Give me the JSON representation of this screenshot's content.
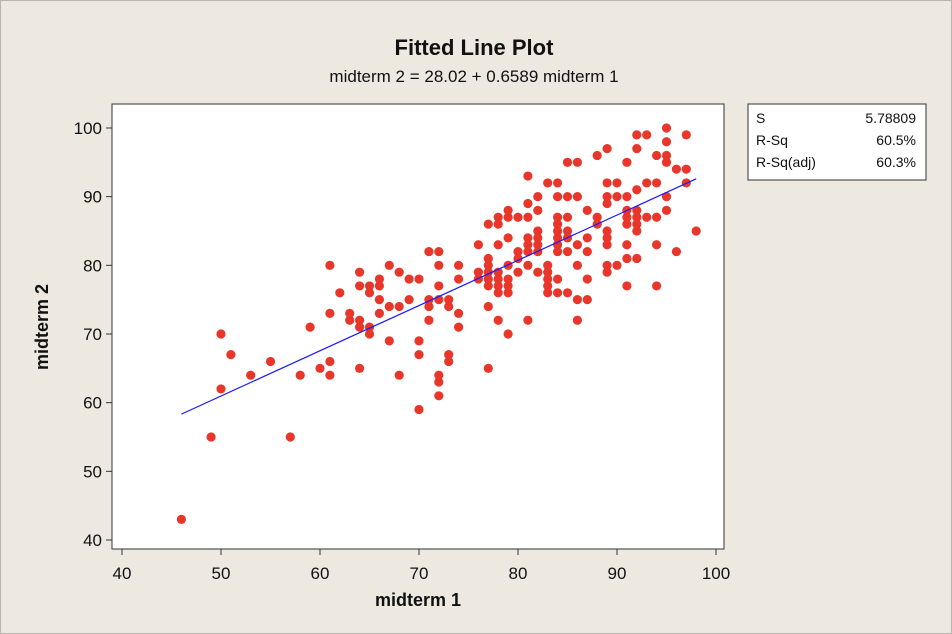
{
  "chart_data": {
    "type": "scatter",
    "title": "Fitted Line Plot",
    "subtitle": "midterm 2 =  28.02 + 0.6589 midterm 1",
    "xlabel": "midterm 1",
    "ylabel": "midterm 2",
    "xlim": [
      39,
      101
    ],
    "ylim": [
      39,
      101.5
    ],
    "xticks": [
      40,
      50,
      60,
      70,
      80,
      90,
      100
    ],
    "yticks": [
      40,
      50,
      60,
      70,
      80,
      90,
      100
    ],
    "fit": {
      "intercept": 28.02,
      "slope": 0.6589,
      "x_range": [
        46,
        98
      ],
      "color": "#1a1aff"
    },
    "point_color": "#e8372a",
    "stats": [
      {
        "label": "S",
        "value": "5.78809"
      },
      {
        "label": "R-Sq",
        "value": "60.5%"
      },
      {
        "label": "R-Sq(adj)",
        "value": "60.3%"
      }
    ],
    "points": [
      [
        46,
        43
      ],
      [
        49,
        55
      ],
      [
        50,
        70
      ],
      [
        50,
        62
      ],
      [
        51,
        67
      ],
      [
        53,
        64
      ],
      [
        55,
        66
      ],
      [
        57,
        55
      ],
      [
        58,
        64
      ],
      [
        59,
        71
      ],
      [
        60,
        65
      ],
      [
        61,
        80
      ],
      [
        61,
        73
      ],
      [
        61,
        66
      ],
      [
        61,
        64
      ],
      [
        62,
        76
      ],
      [
        63,
        73
      ],
      [
        63,
        72
      ],
      [
        64,
        79
      ],
      [
        64,
        77
      ],
      [
        64,
        72
      ],
      [
        64,
        71
      ],
      [
        64,
        65
      ],
      [
        65,
        77
      ],
      [
        65,
        76
      ],
      [
        65,
        71
      ],
      [
        65,
        70
      ],
      [
        66,
        78
      ],
      [
        66,
        77
      ],
      [
        66,
        75
      ],
      [
        66,
        73
      ],
      [
        67,
        80
      ],
      [
        67,
        74
      ],
      [
        67,
        69
      ],
      [
        68,
        79
      ],
      [
        68,
        74
      ],
      [
        68,
        64
      ],
      [
        69,
        78
      ],
      [
        69,
        75
      ],
      [
        70,
        78
      ],
      [
        70,
        69
      ],
      [
        70,
        67
      ],
      [
        70,
        59
      ],
      [
        71,
        82
      ],
      [
        71,
        75
      ],
      [
        71,
        74
      ],
      [
        71,
        72
      ],
      [
        72,
        82
      ],
      [
        72,
        80
      ],
      [
        72,
        77
      ],
      [
        72,
        75
      ],
      [
        72,
        64
      ],
      [
        72,
        63
      ],
      [
        72,
        61
      ],
      [
        73,
        75
      ],
      [
        73,
        74
      ],
      [
        73,
        67
      ],
      [
        73,
        66
      ],
      [
        74,
        80
      ],
      [
        74,
        78
      ],
      [
        74,
        73
      ],
      [
        74,
        71
      ],
      [
        76,
        83
      ],
      [
        76,
        79
      ],
      [
        76,
        78
      ],
      [
        77,
        86
      ],
      [
        77,
        81
      ],
      [
        77,
        80
      ],
      [
        77,
        79
      ],
      [
        77,
        78
      ],
      [
        77,
        77
      ],
      [
        77,
        74
      ],
      [
        77,
        65
      ],
      [
        78,
        87
      ],
      [
        78,
        86
      ],
      [
        78,
        83
      ],
      [
        78,
        79
      ],
      [
        78,
        78
      ],
      [
        78,
        77
      ],
      [
        78,
        76
      ],
      [
        78,
        72
      ],
      [
        79,
        88
      ],
      [
        79,
        87
      ],
      [
        79,
        84
      ],
      [
        79,
        80
      ],
      [
        79,
        78
      ],
      [
        79,
        77
      ],
      [
        79,
        76
      ],
      [
        79,
        70
      ],
      [
        80,
        87
      ],
      [
        80,
        82
      ],
      [
        80,
        81
      ],
      [
        80,
        79
      ],
      [
        81,
        93
      ],
      [
        81,
        89
      ],
      [
        81,
        87
      ],
      [
        81,
        84
      ],
      [
        81,
        83
      ],
      [
        81,
        82
      ],
      [
        81,
        80
      ],
      [
        81,
        72
      ],
      [
        82,
        90
      ],
      [
        82,
        88
      ],
      [
        82,
        85
      ],
      [
        82,
        84
      ],
      [
        82,
        83
      ],
      [
        82,
        82
      ],
      [
        82,
        79
      ],
      [
        83,
        92
      ],
      [
        83,
        80
      ],
      [
        83,
        79
      ],
      [
        83,
        78
      ],
      [
        83,
        77
      ],
      [
        83,
        76
      ],
      [
        84,
        92
      ],
      [
        84,
        90
      ],
      [
        84,
        87
      ],
      [
        84,
        86
      ],
      [
        84,
        85
      ],
      [
        84,
        84
      ],
      [
        84,
        83
      ],
      [
        84,
        82
      ],
      [
        84,
        78
      ],
      [
        84,
        76
      ],
      [
        85,
        95
      ],
      [
        85,
        90
      ],
      [
        85,
        87
      ],
      [
        85,
        85
      ],
      [
        85,
        84
      ],
      [
        85,
        82
      ],
      [
        85,
        76
      ],
      [
        86,
        95
      ],
      [
        86,
        90
      ],
      [
        86,
        83
      ],
      [
        86,
        80
      ],
      [
        86,
        75
      ],
      [
        86,
        72
      ],
      [
        87,
        88
      ],
      [
        87,
        84
      ],
      [
        87,
        82
      ],
      [
        87,
        78
      ],
      [
        87,
        75
      ],
      [
        88,
        96
      ],
      [
        88,
        87
      ],
      [
        88,
        86
      ],
      [
        89,
        97
      ],
      [
        89,
        92
      ],
      [
        89,
        90
      ],
      [
        89,
        89
      ],
      [
        89,
        85
      ],
      [
        89,
        84
      ],
      [
        89,
        83
      ],
      [
        89,
        80
      ],
      [
        89,
        79
      ],
      [
        90,
        92
      ],
      [
        90,
        90
      ],
      [
        90,
        80
      ],
      [
        91,
        95
      ],
      [
        91,
        90
      ],
      [
        91,
        88
      ],
      [
        91,
        87
      ],
      [
        91,
        86
      ],
      [
        91,
        83
      ],
      [
        91,
        81
      ],
      [
        91,
        77
      ],
      [
        92,
        99
      ],
      [
        92,
        97
      ],
      [
        92,
        91
      ],
      [
        92,
        88
      ],
      [
        92,
        87
      ],
      [
        92,
        86
      ],
      [
        92,
        85
      ],
      [
        92,
        81
      ],
      [
        93,
        99
      ],
      [
        93,
        92
      ],
      [
        93,
        87
      ],
      [
        94,
        96
      ],
      [
        94,
        92
      ],
      [
        94,
        87
      ],
      [
        94,
        83
      ],
      [
        94,
        77
      ],
      [
        95,
        100
      ],
      [
        95,
        98
      ],
      [
        95,
        96
      ],
      [
        95,
        95
      ],
      [
        95,
        90
      ],
      [
        95,
        88
      ],
      [
        96,
        94
      ],
      [
        96,
        82
      ],
      [
        97,
        99
      ],
      [
        97,
        94
      ],
      [
        97,
        92
      ],
      [
        98,
        85
      ]
    ]
  }
}
